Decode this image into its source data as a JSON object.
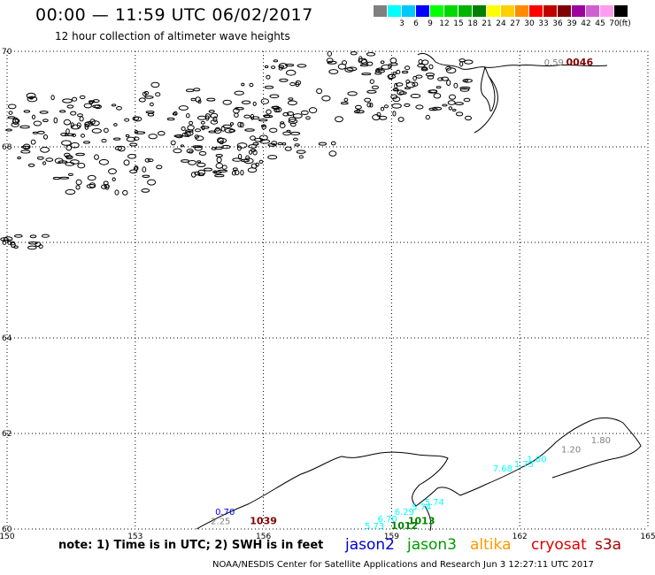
{
  "header": {
    "title": "00:00 — 11:59 UTC 06/02/2017",
    "subtitle": "12 hour collection of altimeter wave heights"
  },
  "scale": {
    "unit": "(ft)",
    "swatches": [
      {
        "color": "#808080",
        "label": ""
      },
      {
        "color": "#00ffff",
        "label": "3"
      },
      {
        "color": "#00c8ff",
        "label": "6"
      },
      {
        "color": "#0000ff",
        "label": "9"
      },
      {
        "color": "#00ff00",
        "label": "12"
      },
      {
        "color": "#00d800",
        "label": "15"
      },
      {
        "color": "#00b400",
        "label": "18"
      },
      {
        "color": "#008000",
        "label": "21"
      },
      {
        "color": "#ffff00",
        "label": "24"
      },
      {
        "color": "#ffd000",
        "label": "27"
      },
      {
        "color": "#ff8c00",
        "label": "30"
      },
      {
        "color": "#ff0000",
        "label": "33"
      },
      {
        "color": "#c00000",
        "label": "36"
      },
      {
        "color": "#800000",
        "label": "39"
      },
      {
        "color": "#a000a0",
        "label": "42"
      },
      {
        "color": "#d060d0",
        "label": "45"
      },
      {
        "color": "#ff9cf0",
        "label": "70"
      },
      {
        "color": "#000000",
        "label": ""
      }
    ]
  },
  "map": {
    "lon_ticks": [
      "150",
      "153",
      "156",
      "159",
      "162",
      "165"
    ],
    "lat_ticks": [
      "70",
      "68",
      "66",
      "64",
      "62",
      "60"
    ],
    "lon_range": [
      150,
      165
    ],
    "lat_range": [
      60,
      70
    ],
    "observations": [
      {
        "label": "0.59",
        "color": "#808080",
        "lon": 162.8,
        "lat": 69.7
      },
      {
        "label": "0046",
        "color": "#800000",
        "lon": 163.4,
        "lat": 69.7
      },
      {
        "label": "1.80",
        "color": "#808080",
        "lon": 163.9,
        "lat": 61.8
      },
      {
        "label": "1.20",
        "color": "#808080",
        "lon": 163.2,
        "lat": 61.6
      },
      {
        "label": "1.00",
        "color": "#00ffff",
        "lon": 162.4,
        "lat": 61.4
      },
      {
        "label": "1.73",
        "color": "#00ffff",
        "lon": 162.1,
        "lat": 61.3
      },
      {
        "label": "7.68",
        "color": "#00ffff",
        "lon": 161.6,
        "lat": 61.2
      },
      {
        "label": "0.70",
        "color": "#0000ff",
        "lon": 155.1,
        "lat": 60.3
      },
      {
        "label": "2.25",
        "color": "#808080",
        "lon": 155.0,
        "lat": 60.1
      },
      {
        "label": "1039",
        "color": "#800000",
        "lon": 156.0,
        "lat": 60.1
      },
      {
        "label": "5.73",
        "color": "#00ffff",
        "lon": 158.6,
        "lat": 60.0
      },
      {
        "label": "6.70",
        "color": "#00ffff",
        "lon": 158.9,
        "lat": 60.15
      },
      {
        "label": "6.29",
        "color": "#00ffff",
        "lon": 159.3,
        "lat": 60.3
      },
      {
        "label": "5.74",
        "color": "#00ffff",
        "lon": 159.7,
        "lat": 60.4
      },
      {
        "label": "5.74",
        "color": "#00ffff",
        "lon": 160.0,
        "lat": 60.5
      },
      {
        "label": "1012",
        "color": "#008000",
        "lon": 159.3,
        "lat": 60.0
      },
      {
        "label": "1013",
        "color": "#008000",
        "lon": 159.7,
        "lat": 60.1
      }
    ]
  },
  "footer": {
    "note": "note: 1) Time is in UTC; 2) SWH is in feet",
    "legend": [
      {
        "label": "jason2",
        "color": "#0000cc"
      },
      {
        "label": "jason3",
        "color": "#009900"
      },
      {
        "label": "altika",
        "color": "#ff9900"
      },
      {
        "label": "cryosat",
        "color": "#dd0000"
      },
      {
        "label": "s3a",
        "color": "#aa0000"
      }
    ],
    "credit": "NOAA/NESDIS Center for Satellite Applications and Research    Jun  3 12:27:11 UTC 2017"
  }
}
